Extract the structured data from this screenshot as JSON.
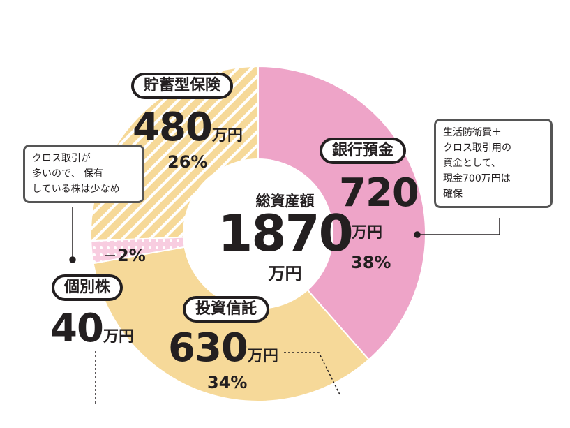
{
  "chart_data": {
    "type": "pie",
    "subtype": "donut",
    "center": {
      "label": "総資産額",
      "value": "1870",
      "unit": "万円"
    },
    "categories": [
      "銀行預金",
      "投資信託",
      "個別株",
      "貯蓄型保険"
    ],
    "values": [
      720,
      630,
      40,
      480
    ],
    "value_labels": [
      "720",
      "630",
      "40",
      "480"
    ],
    "unit": "万円",
    "percents": [
      "38%",
      "34%",
      "2%",
      "26%"
    ],
    "colors": [
      "#eea4c8",
      "#f6d999",
      "#f8cde0",
      "#f6d999"
    ],
    "patterns": [
      "solid",
      "solid",
      "dots",
      "stripes"
    ]
  },
  "notes": {
    "cash": [
      "生活防衛費＋",
      "クロス取引用の",
      "資金として、",
      "現金700万円は",
      "確保"
    ],
    "stock": [
      "クロス取引が",
      "多いので、 保有",
      "している株は少なめ"
    ]
  }
}
